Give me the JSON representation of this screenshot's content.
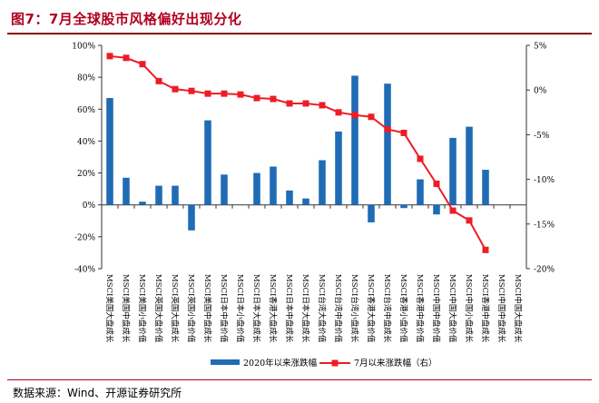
{
  "page": {
    "title": "图7：7月全球股市风格偏好出现分化",
    "source": "数据来源：Wind、开源证券研究所"
  },
  "colors": {
    "bar": "#1f6bb5",
    "line": "#ee1c25",
    "title": "#b0001e"
  },
  "chart_data": {
    "type": "bar",
    "categories": [
      "MSCI美国大盘成长",
      "MSCI美国中盘成长",
      "MSCI美国小盘价值",
      "MSCI英国大盘价值",
      "MSCI英国大盘成长",
      "MSCI英国小盘价值",
      "MSCI美国中盘成长",
      "MSCI日本中盘价值",
      "MSCI日本小盘价值",
      "MSCI日本大盘成长",
      "MSCI香港大盘成长",
      "MSCI日本中盘成长",
      "MSCI日本大盘成长",
      "MSCI台湾大盘价值",
      "MSCI台湾中盘价值",
      "MSCI台湾小盘成长",
      "MSCI香港大盘价值",
      "MSCI台湾中盘成长",
      "MSCI香港小盘价值",
      "MSCI香港中盘价值",
      "MSCI中国中盘价值",
      "MSCI中国大盘价值",
      "MSCI中国小盘成长",
      "MSCI香港中盘成长",
      "MSCI中国中盘成长",
      "MSCI中国大盘成长"
    ],
    "series": [
      {
        "name": "2020年以来涨跌幅",
        "axis": "left",
        "kind": "bar",
        "values": [
          67,
          17,
          2,
          12,
          12,
          -16,
          53,
          19,
          0,
          20,
          24,
          9,
          4,
          28,
          46,
          81,
          -11,
          76,
          -2,
          16,
          -6,
          42,
          49,
          22,
          0,
          0
        ]
      },
      {
        "name": "7月以来涨跌幅（右）",
        "axis": "right",
        "kind": "line",
        "values": [
          3.8,
          3.6,
          2.9,
          1.0,
          0.1,
          -0.1,
          -0.4,
          -0.4,
          -0.5,
          -0.9,
          -1.0,
          -1.5,
          -1.5,
          -1.7,
          -2.5,
          -2.8,
          -3.0,
          -4.4,
          -4.8,
          -7.7,
          -10.5,
          -13.5,
          -14.6,
          -17.9,
          null,
          null
        ]
      }
    ],
    "y_left": {
      "min": -40,
      "max": 100,
      "step": 20,
      "ticks": [
        "-40%",
        "-20%",
        "0%",
        "20%",
        "40%",
        "60%",
        "80%",
        "100%"
      ]
    },
    "y_right": {
      "min": -20,
      "max": 5,
      "step": 5,
      "ticks": [
        "-20%",
        "-15%",
        "-10%",
        "-5%",
        "0%",
        "5%"
      ]
    },
    "legend": {
      "position": "bottom",
      "items": [
        "2020年以来涨跌幅",
        "7月以来涨跌幅（右）"
      ]
    },
    "grid": false
  }
}
